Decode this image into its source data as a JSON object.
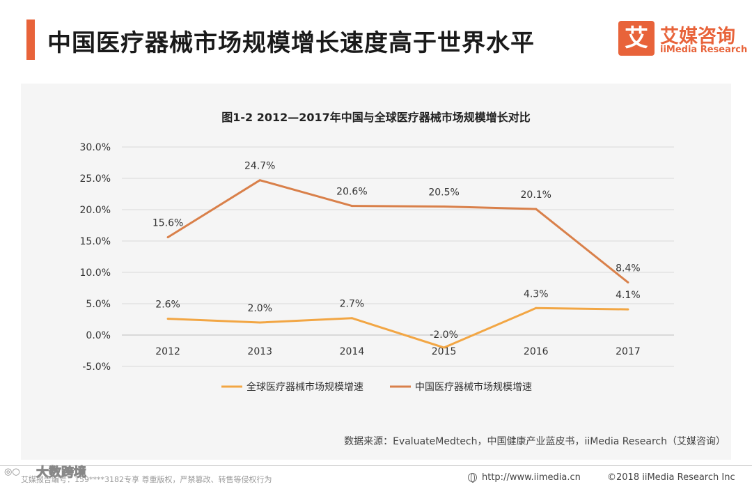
{
  "header": {
    "title": "中国医疗器械市场规模增长速度高于世界水平",
    "logo_mark": "艾",
    "logo_cn": "艾媒咨询",
    "logo_en": "iiMedia Research"
  },
  "chart_data": {
    "type": "line",
    "title": "图1-2 2012—2017年中国与全球医疗器械市场规模增长对比",
    "categories": [
      "2012",
      "2013",
      "2014",
      "2015",
      "2016",
      "2017"
    ],
    "ylim": [
      -5,
      30
    ],
    "yticks": [
      30,
      25,
      20,
      15,
      10,
      5,
      0,
      -5
    ],
    "ytick_labels": [
      "30.0%",
      "25.0%",
      "20.0%",
      "15.0%",
      "10.0%",
      "5.0%",
      "0.0%",
      "-5.0%"
    ],
    "grid": true,
    "legend_position": "bottom",
    "series": [
      {
        "name": "全球医疗器械市场规模增速",
        "values": [
          2.6,
          2.0,
          2.7,
          -2.0,
          4.3,
          4.1
        ],
        "labels": [
          "2.6%",
          "2.0%",
          "2.7%",
          "-2.0%",
          "4.3%",
          "4.1%"
        ],
        "color": "#f2a644"
      },
      {
        "name": "中国医疗器械市场规模增速",
        "values": [
          15.6,
          24.7,
          20.6,
          20.5,
          20.1,
          8.4
        ],
        "labels": [
          "15.6%",
          "24.7%",
          "20.6%",
          "20.5%",
          "20.1%",
          "8.4%"
        ],
        "color": "#d9804a"
      }
    ]
  },
  "source": "数据来源：EvaluateMedtech，中国健康产业蓝皮书，iiMedia Research（艾媒咨询）",
  "footer": {
    "left": "艾媒报告编号：159****3182专享 尊重版权，严禁篡改、转售等侵权行为",
    "url": "http://www.iimedia.cn",
    "copyright": "©2018  iiMedia Research  Inc",
    "watermark_text": "大数跨境"
  }
}
